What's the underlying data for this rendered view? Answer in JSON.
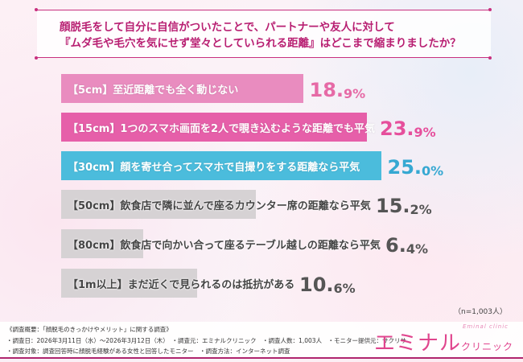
{
  "question": {
    "line1": "顔脱毛をして自分に自信がついたことで、パートナーや友人に対して",
    "line2": "『ムダ毛や毛穴を気にせず堂々としていられる距離』はどこまで縮まりましたか？"
  },
  "chart_data": {
    "type": "bar",
    "orientation": "horizontal",
    "xlim": [
      0,
      35
    ],
    "categories": [
      "【5cm】至近距離でも全く動じない",
      "【15cm】1つのスマホ画面を2人で覗き込むような距離でも平気",
      "【30cm】顔を寄せ合ってスマホで自撮りをする距離なら平気",
      "【50cm】飲食店で隣に並んで座るカウンター席の距離なら平気",
      "【80cm】飲食店で向かい合って座るテーブル越しの距離なら平気",
      "【1m以上】まだ近くで見られるのは抵抗がある"
    ],
    "values": [
      18.9,
      23.9,
      25.0,
      15.2,
      6.4,
      10.6
    ],
    "value_labels": [
      [
        "18.",
        "9%"
      ],
      [
        "23.",
        "9%"
      ],
      [
        "25.",
        "0%"
      ],
      [
        "15.",
        "2%"
      ],
      [
        "6.",
        "4%"
      ],
      [
        "10.",
        "6%"
      ]
    ],
    "bar_colors": [
      "#e98cbf",
      "#e65fa9",
      "#4bbcdc",
      "#d6d2d4",
      "#d6d2d4",
      "#d6d2d4"
    ],
    "label_colors": [
      "#ffffff",
      "#ffffff",
      "#ffffff",
      "#444444",
      "#444444",
      "#444444"
    ],
    "value_colors": [
      "#e66aa6",
      "#e64f9c",
      "#36a8d2",
      "#555555",
      "#555555",
      "#555555"
    ]
  },
  "sample_note": "（n=1,003人）",
  "footer": {
    "line1": "《調査概要：「顔脱毛のきっかけやメリット」に関する調査》",
    "line2": "・調査日：2026年3月11日（水）～2026年3月12日（木）　・調査元：エミナルクリニック　・調査人数：1,003人　・モニター提供元：サクリサ",
    "line3": "・調査対象：調査回答時に顔脱毛経験がある女性と回答したモニター　・調査方法：インターネット調査"
  },
  "logo": {
    "main": "エミナル",
    "sub": "クリニック",
    "en": "Eminal clinic"
  }
}
